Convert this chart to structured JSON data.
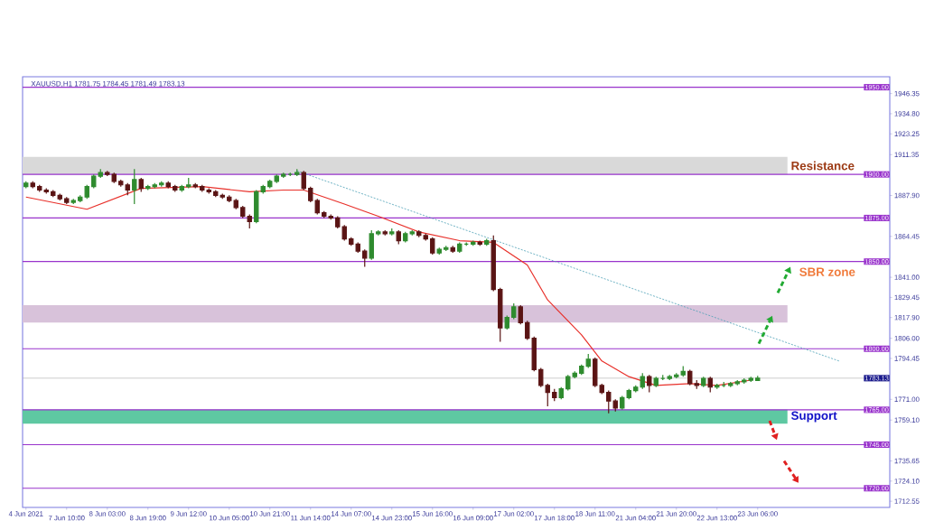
{
  "chart_data": {
    "type": "candlestick",
    "categories": [
      "4 Jun 2021",
      null,
      null,
      null,
      null,
      null,
      "7 Jun 10:00",
      null,
      null,
      null,
      null,
      null,
      "8 Jun 03:00",
      null,
      null,
      null,
      null,
      null,
      "8 Jun 19:00",
      null,
      null,
      null,
      null,
      null,
      "9 Jun 12:00",
      null,
      null,
      null,
      null,
      null,
      "10 Jun 05:00",
      null,
      null,
      null,
      null,
      null,
      "10 Jun 21:00",
      null,
      null,
      null,
      null,
      null,
      "11 Jun 14:00",
      null,
      null,
      null,
      null,
      null,
      "14 Jun 07:00",
      null,
      null,
      null,
      null,
      null,
      "14 Jun 23:00",
      null,
      null,
      null,
      null,
      null,
      "15 Jun 16:00",
      null,
      null,
      null,
      null,
      null,
      "16 Jun 09:00",
      null,
      null,
      null,
      null,
      null,
      "17 Jun 02:00",
      null,
      null,
      null,
      null,
      null,
      "17 Jun 18:00",
      null,
      null,
      null,
      null,
      null,
      "18 Jun 11:00",
      null,
      null,
      null,
      null,
      null,
      "21 Jun 04:00",
      null,
      null,
      null,
      null,
      null,
      "21 Jun 20:00",
      null,
      null,
      null,
      null,
      null,
      "22 Jun 13:00",
      null,
      null,
      null,
      null,
      null,
      "23 Jun 06:00",
      null,
      null,
      null,
      null,
      null,
      null,
      null,
      null,
      null,
      null,
      null,
      null,
      null,
      null,
      null,
      null,
      null,
      null,
      null
    ],
    "ohlc": [
      [
        1893,
        1896,
        1892,
        1895
      ],
      [
        1895,
        1896,
        1892,
        1893
      ],
      [
        1893,
        1894,
        1890,
        1891
      ],
      [
        1891,
        1892,
        1889,
        1890
      ],
      [
        1890,
        1891,
        1887,
        1888
      ],
      [
        1888,
        1889,
        1885,
        1886
      ],
      [
        1886,
        1887,
        1883,
        1884
      ],
      [
        1884,
        1886,
        1883,
        1885
      ],
      [
        1885,
        1888,
        1884,
        1887
      ],
      [
        1887,
        1894,
        1886,
        1893
      ],
      [
        1893,
        1900,
        1892,
        1899
      ],
      [
        1899,
        1903,
        1898,
        1901
      ],
      [
        1901,
        1902,
        1899,
        1900
      ],
      [
        1900,
        1901,
        1895,
        1896
      ],
      [
        1896,
        1897,
        1893,
        1894
      ],
      [
        1894,
        1895,
        1888,
        1891
      ],
      [
        1891,
        1903,
        1883,
        1897
      ],
      [
        1897,
        1898,
        1890,
        1892
      ],
      [
        1892,
        1894,
        1891,
        1893
      ],
      [
        1893,
        1895,
        1892,
        1894
      ],
      [
        1894,
        1896,
        1893,
        1895
      ],
      [
        1895,
        1896,
        1892,
        1893
      ],
      [
        1893,
        1894,
        1890,
        1891
      ],
      [
        1891,
        1894,
        1890,
        1893
      ],
      [
        1893,
        1898,
        1892,
        1894
      ],
      [
        1894,
        1895,
        1892,
        1893
      ],
      [
        1893,
        1894,
        1890,
        1891
      ],
      [
        1891,
        1892,
        1889,
        1890
      ],
      [
        1890,
        1891,
        1887,
        1888
      ],
      [
        1888,
        1889,
        1886,
        1887
      ],
      [
        1887,
        1888,
        1884,
        1885
      ],
      [
        1885,
        1886,
        1880,
        1881
      ],
      [
        1881,
        1882,
        1875,
        1876
      ],
      [
        1876,
        1877,
        1869,
        1873
      ],
      [
        1873,
        1891,
        1872,
        1890
      ],
      [
        1890,
        1894,
        1889,
        1893
      ],
      [
        1893,
        1897,
        1892,
        1896
      ],
      [
        1896,
        1900,
        1895,
        1899
      ],
      [
        1899,
        1901,
        1898,
        1900
      ],
      [
        1900,
        1901,
        1899,
        1900
      ],
      [
        1900,
        1903,
        1899,
        1901
      ],
      [
        1901,
        1902,
        1891,
        1892
      ],
      [
        1892,
        1893,
        1884,
        1885
      ],
      [
        1885,
        1886,
        1877,
        1878
      ],
      [
        1878,
        1879,
        1875,
        1876
      ],
      [
        1876,
        1877,
        1874,
        1875
      ],
      [
        1875,
        1876,
        1869,
        1870
      ],
      [
        1870,
        1871,
        1862,
        1863
      ],
      [
        1863,
        1864,
        1859,
        1860
      ],
      [
        1860,
        1861,
        1855,
        1856
      ],
      [
        1856,
        1857,
        1847,
        1852
      ],
      [
        1852,
        1868,
        1851,
        1866
      ],
      [
        1866,
        1868,
        1865,
        1867
      ],
      [
        1867,
        1868,
        1865,
        1866
      ],
      [
        1866,
        1869,
        1865,
        1867
      ],
      [
        1867,
        1868,
        1860,
        1862
      ],
      [
        1862,
        1867,
        1861,
        1866
      ],
      [
        1866,
        1868,
        1865,
        1867
      ],
      [
        1867,
        1868,
        1864,
        1865
      ],
      [
        1865,
        1866,
        1862,
        1863
      ],
      [
        1863,
        1864,
        1854,
        1855
      ],
      [
        1855,
        1858,
        1854,
        1857
      ],
      [
        1857,
        1859,
        1856,
        1858
      ],
      [
        1858,
        1859,
        1855,
        1856
      ],
      [
        1856,
        1861,
        1855,
        1860
      ],
      [
        1860,
        1861,
        1859,
        1860
      ],
      [
        1860,
        1862,
        1859,
        1861
      ],
      [
        1861,
        1862,
        1859,
        1860
      ],
      [
        1860,
        1863,
        1859,
        1862
      ],
      [
        1862,
        1865,
        1833,
        1834
      ],
      [
        1834,
        1835,
        1804,
        1812
      ],
      [
        1812,
        1819,
        1811,
        1818
      ],
      [
        1818,
        1826,
        1817,
        1824
      ],
      [
        1824,
        1825,
        1814,
        1815
      ],
      [
        1815,
        1816,
        1805,
        1806
      ],
      [
        1806,
        1807,
        1787,
        1788
      ],
      [
        1788,
        1789,
        1778,
        1779
      ],
      [
        1779,
        1780,
        1767,
        1775
      ],
      [
        1775,
        1777,
        1770,
        1772
      ],
      [
        1772,
        1778,
        1771,
        1777
      ],
      [
        1777,
        1785,
        1776,
        1784
      ],
      [
        1784,
        1787,
        1783,
        1786
      ],
      [
        1786,
        1791,
        1785,
        1790
      ],
      [
        1790,
        1797,
        1789,
        1794
      ],
      [
        1794,
        1795,
        1778,
        1779
      ],
      [
        1779,
        1780,
        1774,
        1775
      ],
      [
        1775,
        1776,
        1763,
        1770
      ],
      [
        1770,
        1771,
        1764,
        1766
      ],
      [
        1766,
        1773,
        1765,
        1772
      ],
      [
        1772,
        1777,
        1771,
        1776
      ],
      [
        1776,
        1779,
        1775,
        1778
      ],
      [
        1778,
        1786,
        1777,
        1784
      ],
      [
        1784,
        1785,
        1775,
        1779
      ],
      [
        1779,
        1784,
        1778,
        1783
      ],
      [
        1783,
        1785,
        1782,
        1783
      ],
      [
        1783,
        1785,
        1782,
        1784
      ],
      [
        1784,
        1786,
        1783,
        1785
      ],
      [
        1785,
        1790,
        1784,
        1787
      ],
      [
        1787,
        1788,
        1779,
        1780
      ],
      [
        1780,
        1782,
        1777,
        1779
      ],
      [
        1779,
        1784,
        1778,
        1783
      ],
      [
        1783,
        1784,
        1775,
        1778
      ],
      [
        1778,
        1780,
        1777,
        1779
      ],
      [
        1779,
        1781,
        1778,
        1779
      ],
      [
        1779,
        1781,
        1778,
        1780
      ],
      [
        1780,
        1782,
        1779,
        1781
      ],
      [
        1781,
        1783,
        1780,
        1782
      ],
      [
        1782,
        1784,
        1781,
        1783
      ],
      [
        1781.75,
        1784.45,
        1781.49,
        1783.13
      ],
      null,
      null,
      null,
      null,
      null,
      null,
      null,
      null,
      null,
      null,
      null,
      null,
      null,
      null,
      null,
      null,
      null,
      null,
      null
    ],
    "series": [
      {
        "type": "line",
        "color": "#e8302a",
        "values": [
          1887,
          null,
          null,
          null,
          null,
          null,
          null,
          null,
          null,
          1880,
          null,
          null,
          null,
          null,
          null,
          null,
          null,
          1892,
          null,
          null,
          null,
          null,
          null,
          null,
          null,
          null,
          1893,
          null,
          null,
          null,
          null,
          null,
          null,
          1890,
          null,
          null,
          null,
          null,
          1891,
          null,
          null,
          1891,
          null,
          null,
          null,
          null,
          null,
          1883,
          null,
          null,
          null,
          null,
          1876,
          null,
          null,
          null,
          null,
          null,
          1867,
          null,
          null,
          null,
          null,
          null,
          1862,
          null,
          null,
          null,
          null,
          1861,
          null,
          null,
          null,
          null,
          1848,
          null,
          null,
          1828,
          null,
          null,
          null,
          null,
          1808,
          null,
          null,
          1793,
          null,
          null,
          null,
          1784,
          null,
          null,
          null,
          1779,
          null,
          null,
          null,
          null,
          1780,
          null,
          null,
          null,
          1779,
          null,
          null,
          null,
          null,
          1782,
          null,
          null,
          null,
          null,
          null,
          null,
          null,
          null,
          null,
          null,
          null,
          null,
          null,
          null,
          null,
          null,
          null,
          null,
          null,
          null
        ]
      },
      {
        "type": "line",
        "color": "#4a9fb5",
        "line_style": "dotted",
        "values": [
          null,
          null,
          null,
          null,
          null,
          null,
          null,
          null,
          null,
          null,
          null,
          null,
          null,
          null,
          null,
          null,
          null,
          null,
          null,
          null,
          null,
          null,
          null,
          null,
          null,
          null,
          null,
          null,
          null,
          null,
          null,
          null,
          null,
          null,
          null,
          null,
          null,
          null,
          null,
          null,
          1902,
          null,
          null,
          null,
          null,
          null,
          null,
          null,
          null,
          null,
          null,
          null,
          null,
          null,
          null,
          null,
          null,
          null,
          null,
          null,
          null,
          null,
          null,
          null,
          null,
          null,
          null,
          null,
          null,
          null,
          null,
          null,
          null,
          null,
          null,
          null,
          null,
          null,
          null,
          null,
          null,
          null,
          null,
          null,
          null,
          null,
          null,
          null,
          null,
          null,
          null,
          null,
          null,
          null,
          null,
          null,
          null,
          null,
          null,
          null,
          null,
          null,
          null,
          null,
          null,
          null,
          null,
          null,
          null,
          null,
          null,
          null,
          null,
          null,
          null,
          null,
          null,
          null,
          null,
          null,
          1793,
          null,
          null,
          null,
          null,
          null,
          null,
          null
        ]
      }
    ],
    "ylim": [
      1709,
      1956
    ],
    "yticks": [
      {
        "value": 1946.35,
        "label": "1946.35"
      },
      {
        "value": 1934.8,
        "label": "1934.80"
      },
      {
        "value": 1923.25,
        "label": "1923.25"
      },
      {
        "value": 1911.35,
        "label": "1911.35"
      },
      {
        "value": 1887.9,
        "label": "1887.90"
      },
      {
        "value": 1864.45,
        "label": "1864.45"
      },
      {
        "value": 1841,
        "label": "1841.00"
      },
      {
        "value": 1829.45,
        "label": "1829.45"
      },
      {
        "value": 1817.9,
        "label": "1817.90"
      },
      {
        "value": 1806,
        "label": "1806.00"
      },
      {
        "value": 1794.45,
        "label": "1794.45"
      },
      {
        "value": 1771,
        "label": "1771.00"
      },
      {
        "value": 1759.1,
        "label": "1759.10"
      },
      {
        "value": 1735.65,
        "label": "1735.65"
      },
      {
        "value": 1724.1,
        "label": "1724.10"
      },
      {
        "value": 1712.55,
        "label": "1712.55"
      }
    ],
    "ref_lines": [
      {
        "axis": "y",
        "value": 1950,
        "label": "1950.00",
        "color": "#9933cc"
      },
      {
        "axis": "y",
        "value": 1900,
        "label": "1900.00",
        "color": "#9933cc"
      },
      {
        "axis": "y",
        "value": 1875,
        "label": "1875.00",
        "color": "#9933cc"
      },
      {
        "axis": "y",
        "value": 1850,
        "label": "1850.00",
        "color": "#9933cc"
      },
      {
        "axis": "y",
        "value": 1800,
        "label": "1800.00",
        "color": "#9933cc"
      },
      {
        "axis": "y",
        "value": 1783.13,
        "label": "1783.13",
        "color": "#b4b4b4"
      },
      {
        "axis": "y",
        "value": 1765,
        "label": "1765.00",
        "color": "#9933cc"
      },
      {
        "axis": "y",
        "value": 1745,
        "label": "1745.00",
        "color": "#9933cc"
      },
      {
        "axis": "y",
        "value": 1720,
        "label": "1720.00",
        "color": "#9933cc"
      }
    ],
    "bands": [
      {
        "axis": "y",
        "from": 1900,
        "to": 1910,
        "label": "Resistance",
        "color": "#d9d9d9"
      },
      {
        "axis": "y",
        "from": 1815,
        "to": 1825,
        "color": "#d8c2da"
      },
      {
        "axis": "y",
        "from": 1757,
        "to": 1765,
        "label": "Support",
        "color": "#5ec8a2"
      }
    ],
    "annotations": [
      "XAUUSD,H1  1781.75 1784.45 1781.49 1783.13",
      "SBR zone"
    ]
  }
}
